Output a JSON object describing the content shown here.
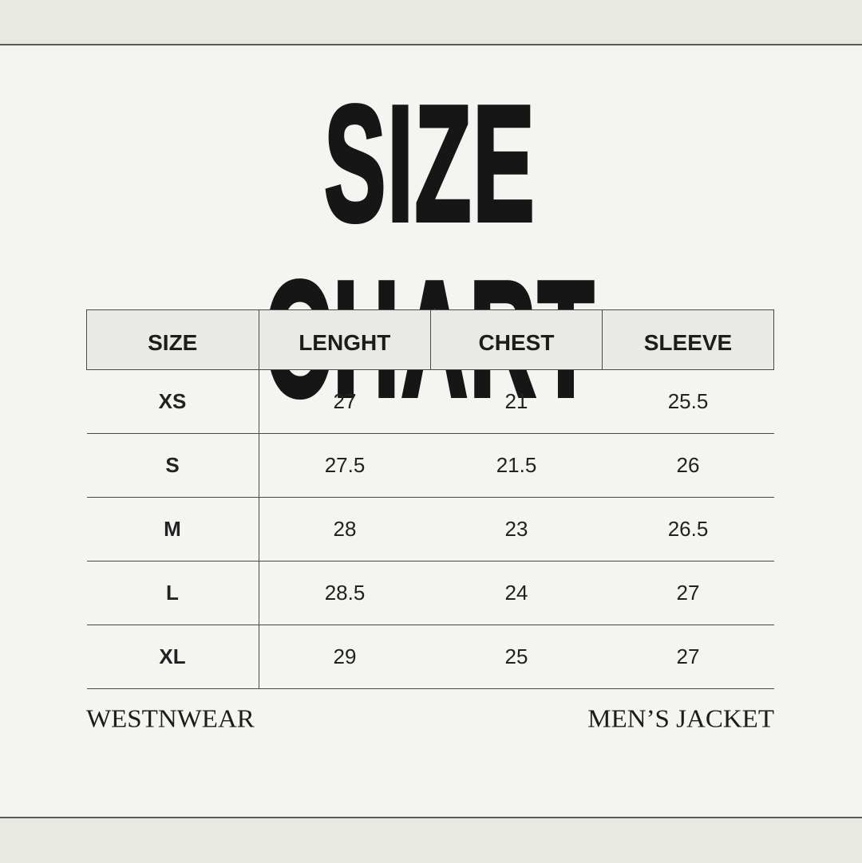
{
  "title": "SIZE CHART",
  "table": {
    "headers": [
      "SIZE",
      "LENGHT",
      "CHEST",
      "SLEEVE"
    ],
    "rows": [
      [
        "XS",
        "27",
        "21",
        "25.5"
      ],
      [
        "S",
        "27.5",
        "21.5",
        "26"
      ],
      [
        "M",
        "28",
        "23",
        "26.5"
      ],
      [
        "L",
        "28.5",
        "24",
        "27"
      ],
      [
        "XL",
        "29",
        "25",
        "27"
      ]
    ]
  },
  "footer": {
    "brand": "WESTNWEAR",
    "product": "MEN’S JACKET"
  },
  "colors": {
    "background": "#f4f4f1",
    "band": "#e9e9e4",
    "header_fill": "#e9e9e5",
    "text": "#1a1a1a"
  }
}
